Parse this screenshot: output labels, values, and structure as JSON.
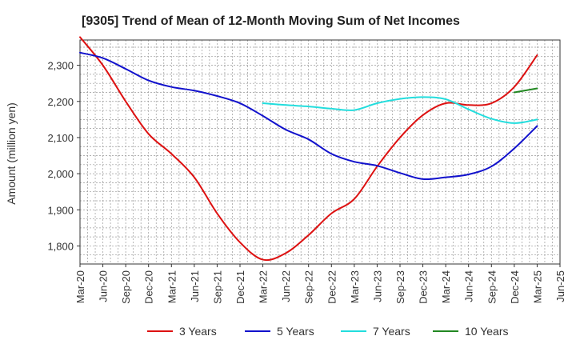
{
  "chart_data": {
    "type": "line",
    "title": "[9305]  Trend of Mean of 12-Month Moving Sum of Net Incomes",
    "xlabel": "",
    "ylabel": "Amount (million yen)",
    "ylim": [
      1750,
      2370
    ],
    "yticks": [
      1800,
      1900,
      2000,
      2100,
      2200,
      2300
    ],
    "ytick_labels": [
      "1,800",
      "1,900",
      "2,000",
      "2,100",
      "2,200",
      "2,300"
    ],
    "xticks": [
      "Mar-20",
      "Jun-20",
      "Sep-20",
      "Dec-20",
      "Mar-21",
      "Jun-21",
      "Sep-21",
      "Dec-21",
      "Mar-22",
      "Jun-22",
      "Sep-22",
      "Dec-22",
      "Mar-23",
      "Jun-23",
      "Sep-23",
      "Dec-23",
      "Mar-24",
      "Jun-24",
      "Sep-24",
      "Dec-24",
      "Mar-25",
      "Jun-25"
    ],
    "grid": true,
    "legend_position": "bottom",
    "series": [
      {
        "name": "3 Years",
        "color": "#dd1111",
        "x": [
          "Mar-20",
          "Jun-20",
          "Sep-20",
          "Dec-20",
          "Mar-21",
          "Jun-21",
          "Sep-21",
          "Dec-21",
          "Mar-22",
          "Jun-22",
          "Sep-22",
          "Dec-22",
          "Mar-23",
          "Jun-23",
          "Sep-23",
          "Dec-23",
          "Mar-24",
          "Jun-24",
          "Sep-24",
          "Dec-24",
          "Mar-25"
        ],
        "values": [
          2378,
          2300,
          2200,
          2110,
          2055,
          1990,
          1890,
          1810,
          1762,
          1780,
          1830,
          1890,
          1930,
          2020,
          2100,
          2162,
          2195,
          2190,
          2195,
          2240,
          2328
        ]
      },
      {
        "name": "5 Years",
        "color": "#1111cc",
        "x": [
          "Mar-20",
          "Jun-20",
          "Sep-20",
          "Dec-20",
          "Mar-21",
          "Jun-21",
          "Sep-21",
          "Dec-21",
          "Mar-22",
          "Jun-22",
          "Sep-22",
          "Dec-22",
          "Mar-23",
          "Jun-23",
          "Sep-23",
          "Dec-23",
          "Mar-24",
          "Jun-24",
          "Sep-24",
          "Dec-24",
          "Mar-25"
        ],
        "values": [
          2335,
          2320,
          2290,
          2258,
          2240,
          2230,
          2215,
          2195,
          2160,
          2122,
          2095,
          2055,
          2033,
          2022,
          2002,
          1985,
          1990,
          1998,
          2020,
          2070,
          2132
        ]
      },
      {
        "name": "7 Years",
        "color": "#22dddd",
        "x": [
          "Mar-22",
          "Jun-22",
          "Sep-22",
          "Dec-22",
          "Mar-23",
          "Jun-23",
          "Sep-23",
          "Dec-23",
          "Mar-24",
          "Jun-24",
          "Sep-24",
          "Dec-24",
          "Mar-25"
        ],
        "values": [
          2195,
          2190,
          2186,
          2180,
          2176,
          2195,
          2207,
          2212,
          2206,
          2178,
          2152,
          2140,
          2150
        ]
      },
      {
        "name": "10 Years",
        "color": "#228822",
        "x": [
          "Dec-24",
          "Mar-25"
        ],
        "values": [
          2225,
          2236
        ]
      }
    ]
  }
}
